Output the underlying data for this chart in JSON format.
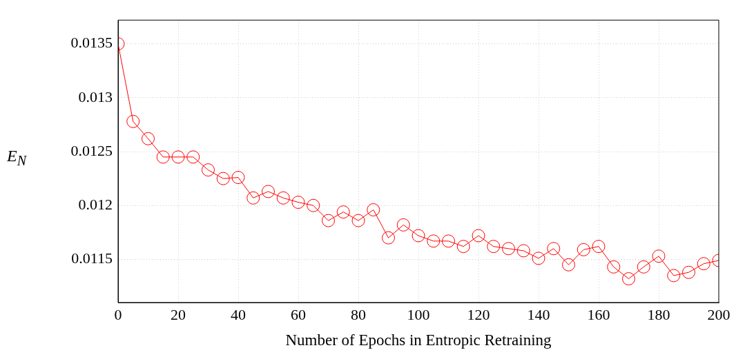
{
  "chart_data": {
    "type": "line",
    "xlabel": "Number of Epochs in Entropic Retraining",
    "ylabel": "E$_{N}$",
    "x": [
      0,
      5,
      10,
      15,
      20,
      25,
      30,
      35,
      40,
      45,
      50,
      55,
      60,
      65,
      70,
      75,
      80,
      85,
      90,
      95,
      100,
      105,
      110,
      115,
      120,
      125,
      130,
      135,
      140,
      145,
      150,
      155,
      160,
      165,
      170,
      175,
      180,
      185,
      190,
      195,
      200
    ],
    "series": [
      {
        "color": "#ff0000",
        "values": [
          0.0135,
          0.01278,
          0.01262,
          0.01245,
          0.01245,
          0.01245,
          0.01233,
          0.01225,
          0.01226,
          0.01207,
          0.01213,
          0.01207,
          0.01203,
          0.012,
          0.01186,
          0.01194,
          0.01186,
          0.01196,
          0.0117,
          0.01182,
          0.01172,
          0.01167,
          0.01167,
          0.01162,
          0.01172,
          0.01162,
          0.0116,
          0.01158,
          0.01151,
          0.0116,
          0.01145,
          0.01159,
          0.01162,
          0.01143,
          0.01132,
          0.01143,
          0.01153,
          0.01135,
          0.01138,
          0.01146,
          0.01149
        ]
      }
    ],
    "xlim": [
      0,
      200
    ],
    "xticks": [
      0,
      20,
      40,
      60,
      80,
      100,
      120,
      140,
      160,
      180,
      200
    ],
    "ylim": [
      0.0111,
      0.01372
    ],
    "yticks": [
      0.0115,
      0.012,
      0.0125,
      0.013,
      0.0135
    ],
    "grid": true,
    "marker": "circle",
    "line_style": "solid",
    "legend": false
  }
}
